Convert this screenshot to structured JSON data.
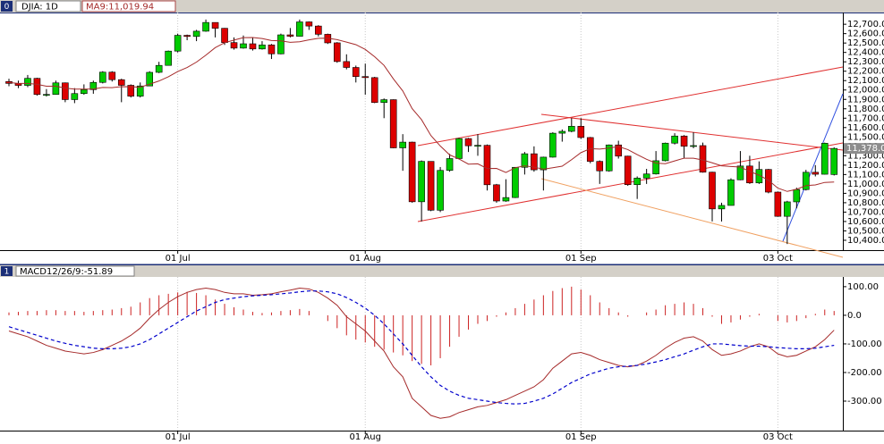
{
  "chart_data": [
    {
      "type": "candlestick",
      "panel": "0",
      "title": "DJIA: 1D",
      "ma_label": "MA9:11,019.94",
      "categories": [
        null,
        null,
        null,
        null,
        null,
        null,
        null,
        null,
        null,
        null,
        null,
        null,
        null,
        null,
        null,
        null,
        null,
        null,
        "01 Jul",
        null,
        null,
        null,
        null,
        null,
        null,
        null,
        null,
        null,
        null,
        null,
        null,
        null,
        null,
        null,
        null,
        null,
        null,
        null,
        "01 Aug",
        null,
        null,
        null,
        null,
        null,
        null,
        null,
        null,
        null,
        null,
        null,
        null,
        null,
        null,
        null,
        null,
        null,
        null,
        null,
        null,
        null,
        null,
        "01 Sep",
        null,
        null,
        null,
        null,
        null,
        null,
        null,
        null,
        null,
        null,
        null,
        null,
        null,
        null,
        null,
        null,
        null,
        null,
        null,
        null,
        "03 Oct",
        null,
        null,
        null,
        null,
        null,
        null
      ],
      "open": [
        12090,
        12070,
        12049,
        12124,
        11952,
        11953,
        12076,
        11898,
        11962,
        12004,
        12081,
        12190,
        12110,
        12050,
        11934,
        12043,
        12188,
        12262,
        12414,
        12582,
        12570,
        12626,
        12719,
        12657,
        12505,
        12446,
        12492,
        12437,
        12480,
        12385,
        12587,
        12572,
        12725,
        12681,
        12593,
        12502,
        12303,
        12240,
        12143,
        12132,
        11867,
        11897,
        11384,
        11445,
        10810,
        11240,
        10720,
        11144,
        11270,
        11483,
        11406,
        11411,
        10991,
        10818,
        10855,
        11177,
        11321,
        11150,
        11285,
        11540,
        11560,
        11614,
        11494,
        11240,
        11139,
        11415,
        11296,
        10992,
        11062,
        11106,
        11247,
        11434,
        11510,
        11401,
        11408,
        11125,
        10734,
        10771,
        11044,
        11191,
        11011,
        11154,
        10913,
        10655,
        10809,
        10940,
        11124,
        11103,
        11100
      ],
      "high": [
        12120,
        12100,
        12160,
        12130,
        12010,
        12100,
        12080,
        12020,
        12060,
        12100,
        12200,
        12200,
        12120,
        12060,
        12080,
        12200,
        12300,
        12420,
        12600,
        12590,
        12640,
        12750,
        12720,
        12660,
        12560,
        12580,
        12560,
        12520,
        12490,
        12600,
        12660,
        12750,
        12730,
        12690,
        12600,
        12510,
        12380,
        12260,
        12280,
        12140,
        11910,
        11900,
        11530,
        11450,
        11250,
        11240,
        11180,
        11320,
        11490,
        11490,
        11530,
        11420,
        11000,
        11050,
        11180,
        11340,
        11400,
        11290,
        11550,
        11580,
        11700,
        11700,
        11500,
        11250,
        11420,
        11460,
        11300,
        11080,
        11160,
        11350,
        11440,
        11540,
        11520,
        11550,
        11440,
        11130,
        10800,
        11060,
        11350,
        11300,
        11240,
        11160,
        10920,
        10820,
        10960,
        11150,
        11200,
        11440,
        11390
      ],
      "low": [
        12040,
        12020,
        12030,
        11940,
        11930,
        11950,
        11870,
        11860,
        11950,
        11960,
        12070,
        12090,
        11870,
        11920,
        11920,
        12040,
        12180,
        12260,
        12400,
        12530,
        12520,
        12620,
        12560,
        12480,
        12430,
        12440,
        12420,
        12430,
        12330,
        12380,
        12560,
        12570,
        12640,
        12570,
        12490,
        12290,
        12220,
        12080,
        11950,
        11860,
        11700,
        11380,
        11140,
        10800,
        10600,
        10710,
        10700,
        11130,
        11260,
        11340,
        11300,
        10930,
        10800,
        10810,
        10850,
        11100,
        11130,
        10930,
        11280,
        11450,
        11550,
        11480,
        11220,
        11000,
        11130,
        11270,
        10980,
        10840,
        11000,
        11100,
        11240,
        11420,
        11270,
        11380,
        11120,
        10600,
        10600,
        10770,
        11040,
        11000,
        11000,
        10900,
        10650,
        10360,
        10740,
        10930,
        11080,
        11100,
        11090
      ],
      "close": [
        12070,
        12049,
        12124,
        11952,
        11953,
        12076,
        11898,
        11962,
        12004,
        12081,
        12190,
        12110,
        12050,
        11934,
        12043,
        12188,
        12262,
        12414,
        12582,
        12570,
        12626,
        12719,
        12657,
        12505,
        12446,
        12492,
        12437,
        12480,
        12385,
        12587,
        12572,
        12725,
        12681,
        12593,
        12502,
        12303,
        12240,
        12143,
        12132,
        11867,
        11897,
        11384,
        11445,
        10810,
        11240,
        10720,
        11144,
        11270,
        11483,
        11406,
        11411,
        10991,
        10818,
        10855,
        11177,
        11321,
        11150,
        11285,
        11540,
        11560,
        11614,
        11494,
        11240,
        11139,
        11415,
        11296,
        10992,
        11062,
        11106,
        11247,
        11434,
        11510,
        11401,
        11408,
        11125,
        10734,
        10771,
        11044,
        11191,
        11011,
        11154,
        10913,
        10655,
        10809,
        10940,
        11124,
        11103,
        11433,
        11378
      ],
      "close_label": "11,378.0",
      "ma": [
        12080,
        12070,
        12070,
        12060,
        12040,
        12040,
        12020,
        12010,
        12010,
        12011,
        12027,
        12025,
        12036,
        12034,
        12030,
        12062,
        12096,
        12141,
        12197,
        12239,
        12297,
        12371,
        12451,
        12503,
        12531,
        12557,
        12559,
        12548,
        12527,
        12523,
        12507,
        12514,
        12534,
        12550,
        12551,
        12536,
        12510,
        12483,
        12432,
        12354,
        12262,
        12118,
        11990,
        11802,
        11684,
        11515,
        11404,
        11309,
        11266,
        11211,
        11214,
        11164,
        11165,
        11122,
        11173,
        11192,
        11179,
        11157,
        11172,
        11189,
        11258,
        11333,
        11376,
        11371,
        11382,
        11398,
        11366,
        11312,
        11262,
        11221,
        11215,
        11245,
        11274,
        11273,
        11254,
        11225,
        11193,
        11186,
        11180,
        11133,
        11093,
        11039,
        10955,
        10920,
        10943,
        10982,
        10989,
        11016,
        11019.94
      ],
      "up_color": "#00cc00",
      "down_color": "#dd0000",
      "ma_color": "#a52a2a",
      "ylim": [
        10295,
        12825
      ],
      "yticks": [
        {
          "value": 10400,
          "label": "10,400.0"
        },
        {
          "value": 10500,
          "label": "10,500.0"
        },
        {
          "value": 10600,
          "label": "10,600.0"
        },
        {
          "value": 10700,
          "label": "10,700.0"
        },
        {
          "value": 10800,
          "label": "10,800.0"
        },
        {
          "value": 10900,
          "label": "10,900.0"
        },
        {
          "value": 11000,
          "label": "11,000.0"
        },
        {
          "value": 11100,
          "label": "11,100.0"
        },
        {
          "value": 11200,
          "label": "11,200.0"
        },
        {
          "value": 11300,
          "label": "11,300.0"
        },
        {
          "value": 11400,
          "label": "11,400.0"
        },
        {
          "value": 11500,
          "label": "11,500.0"
        },
        {
          "value": 11600,
          "label": "11,600.0"
        },
        {
          "value": 11700,
          "label": "11,700.0"
        },
        {
          "value": 11800,
          "label": "11,800.0"
        },
        {
          "value": 11900,
          "label": "11,900.0"
        },
        {
          "value": 12000,
          "label": "12,000.0"
        },
        {
          "value": 12100,
          "label": "12,100.0"
        },
        {
          "value": 12200,
          "label": "12,200.0"
        },
        {
          "value": 12300,
          "label": "12,300.0"
        },
        {
          "value": 12400,
          "label": "12,400.0"
        },
        {
          "value": 12500,
          "label": "12,500.0"
        },
        {
          "value": 12600,
          "label": "12,600.0"
        },
        {
          "value": 12700,
          "label": "12,700.0"
        }
      ]
    },
    {
      "type": "macd",
      "panel": "1",
      "title": "MACD12/26/9:-51.89",
      "categories": [
        null,
        null,
        null,
        null,
        null,
        null,
        null,
        null,
        null,
        null,
        null,
        null,
        null,
        null,
        null,
        null,
        null,
        null,
        "01 Jul",
        null,
        null,
        null,
        null,
        null,
        null,
        null,
        null,
        null,
        null,
        null,
        null,
        null,
        null,
        null,
        null,
        null,
        null,
        null,
        "01 Aug",
        null,
        null,
        null,
        null,
        null,
        null,
        null,
        null,
        null,
        null,
        null,
        null,
        null,
        null,
        null,
        null,
        null,
        null,
        null,
        null,
        null,
        null,
        "01 Sep",
        null,
        null,
        null,
        null,
        null,
        null,
        null,
        null,
        null,
        null,
        null,
        null,
        null,
        null,
        null,
        null,
        null,
        null,
        null,
        null,
        "03 Oct",
        null,
        null,
        null,
        null,
        null,
        null
      ],
      "macd_line": {
        "color": "#a52a2a",
        "values": [
          -55,
          -65,
          -75,
          -90,
          -105,
          -115,
          -125,
          -130,
          -135,
          -130,
          -120,
          -105,
          -90,
          -70,
          -45,
          -10,
          20,
          45,
          65,
          80,
          90,
          95,
          90,
          80,
          75,
          75,
          70,
          72,
          75,
          82,
          88,
          95,
          92,
          80,
          60,
          35,
          -5,
          -30,
          -55,
          -90,
          -125,
          -180,
          -215,
          -290,
          -320,
          -350,
          -360,
          -355,
          -340,
          -330,
          -320,
          -315,
          -305,
          -295,
          -280,
          -265,
          -250,
          -225,
          -185,
          -160,
          -135,
          -130,
          -140,
          -155,
          -165,
          -175,
          -180,
          -175,
          -160,
          -140,
          -115,
          -95,
          -80,
          -75,
          -90,
          -120,
          -140,
          -135,
          -125,
          -110,
          -100,
          -110,
          -135,
          -145,
          -140,
          -125,
          -110,
          -85,
          -51.89
        ]
      },
      "signal_line": {
        "color": "#0000cc",
        "values": [
          -40,
          -50,
          -60,
          -70,
          -80,
          -90,
          -98,
          -105,
          -110,
          -115,
          -117,
          -117,
          -115,
          -110,
          -100,
          -85,
          -65,
          -45,
          -25,
          -5,
          15,
          30,
          45,
          55,
          60,
          65,
          68,
          70,
          72,
          75,
          78,
          82,
          85,
          85,
          82,
          75,
          62,
          45,
          25,
          0,
          -30,
          -65,
          -100,
          -140,
          -180,
          -215,
          -245,
          -265,
          -280,
          -290,
          -295,
          -300,
          -305,
          -308,
          -310,
          -308,
          -300,
          -290,
          -275,
          -255,
          -235,
          -220,
          -205,
          -195,
          -185,
          -180,
          -178,
          -175,
          -170,
          -163,
          -155,
          -145,
          -135,
          -122,
          -110,
          -100,
          -100,
          -103,
          -106,
          -108,
          -108,
          -110,
          -113,
          -115,
          -117,
          -117,
          -115,
          -110,
          -105
        ]
      },
      "histogram": {
        "color": "#cc2222",
        "values": [
          10,
          12,
          15,
          15,
          18,
          18,
          15,
          15,
          12,
          15,
          18,
          20,
          25,
          30,
          45,
          60,
          70,
          75,
          80,
          82,
          78,
          70,
          55,
          40,
          28,
          20,
          12,
          8,
          10,
          15,
          18,
          22,
          15,
          0,
          -20,
          -45,
          -70,
          -85,
          -95,
          -110,
          -120,
          -130,
          -140,
          -160,
          -170,
          -175,
          -150,
          -110,
          -75,
          -50,
          -30,
          -20,
          -5,
          10,
          25,
          40,
          55,
          70,
          85,
          95,
          100,
          90,
          70,
          45,
          25,
          10,
          -5,
          0,
          10,
          20,
          35,
          40,
          45,
          40,
          25,
          -5,
          -30,
          -25,
          -15,
          -5,
          5,
          0,
          -20,
          -25,
          -20,
          -10,
          5,
          20,
          15
        ]
      },
      "ylim": [
        -403,
        134
      ],
      "yticks": [
        {
          "value": 100,
          "label": "100.00"
        },
        {
          "value": 0,
          "label": "0.0"
        },
        {
          "value": -100,
          "label": "-100.00"
        },
        {
          "value": -200,
          "label": "-200.00"
        },
        {
          "value": -300,
          "label": "-300.00"
        }
      ]
    }
  ]
}
